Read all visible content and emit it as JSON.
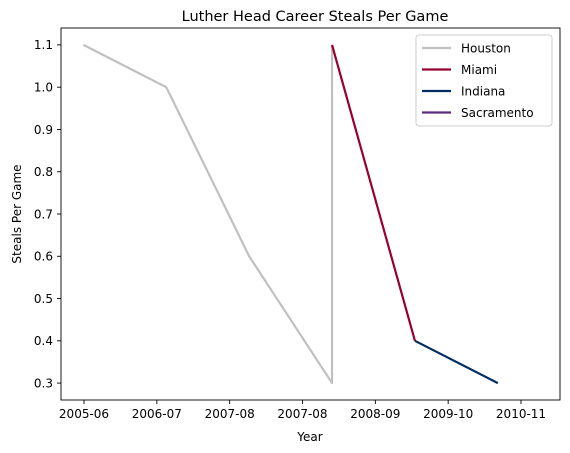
{
  "chart_data": {
    "type": "line",
    "title": "Luther Head Career Steals Per Game",
    "xlabel": "Year",
    "ylabel": "Steals Per Game",
    "x_ticks": [
      "2005-06",
      "2006-07",
      "2007-08",
      "2007-08",
      "2008-09",
      "2009-10",
      "2010-11"
    ],
    "y_ticks": [
      "0.3",
      "0.4",
      "0.5",
      "0.6",
      "0.7",
      "0.8",
      "0.9",
      "1.0",
      "1.1"
    ],
    "ylim": [
      0.26,
      1.14
    ],
    "grid": false,
    "legend_position": "top-right",
    "series": [
      {
        "name": "Houston",
        "color": "#c0c0c0",
        "points": [
          {
            "x": "2005-06",
            "y": 1.1
          },
          {
            "x": "2006-07",
            "y": 1.0
          },
          {
            "x": "2007-08",
            "y": 0.6
          },
          {
            "x": "2008-09",
            "y": 0.3
          },
          {
            "x": "2008-09",
            "y": 1.1
          }
        ]
      },
      {
        "name": "Miami",
        "color": "#98002e",
        "points": [
          {
            "x": "2008-09",
            "y": 1.1
          },
          {
            "x": "2009-10",
            "y": 0.4
          }
        ]
      },
      {
        "name": "Indiana",
        "color": "#002d62",
        "points": [
          {
            "x": "2009-10",
            "y": 0.4
          },
          {
            "x": "2010-11",
            "y": 0.3
          }
        ]
      },
      {
        "name": "Sacramento",
        "color": "#5a2d81",
        "points": []
      }
    ]
  }
}
